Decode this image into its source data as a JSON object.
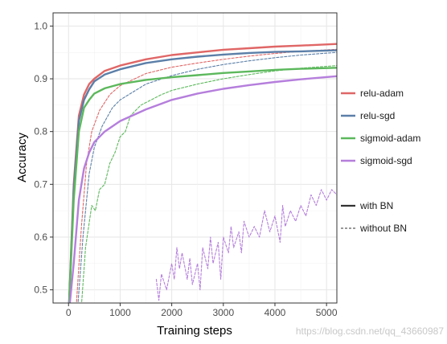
{
  "chart_data": {
    "type": "line",
    "title": "",
    "xlabel": "Training steps",
    "ylabel": "Accuracy",
    "xlim": [
      -300,
      5200
    ],
    "ylim": [
      0.475,
      1.025
    ],
    "x_ticks": [
      0,
      1000,
      2000,
      3000,
      4000,
      5000
    ],
    "y_ticks": [
      0.5,
      0.6,
      0.7,
      0.8,
      0.9,
      1.0
    ],
    "x_tick_labels": [
      "0",
      "1000",
      "2000",
      "3000",
      "4000",
      "5000"
    ],
    "y_tick_labels": [
      "0.5",
      "0.6",
      "0.7",
      "0.8",
      "0.9",
      "1.0"
    ],
    "grid": true,
    "legend_position": "right",
    "legend_colors": [
      {
        "label": "relu-adam",
        "color": "#e06666"
      },
      {
        "label": "relu-sgd",
        "color": "#5b7fa8"
      },
      {
        "label": "sigmoid-adam",
        "color": "#5cb85c"
      },
      {
        "label": "sigmoid-sgd",
        "color": "#b57edc"
      }
    ],
    "legend_styles": [
      {
        "label": "with BN",
        "dash": "solid"
      },
      {
        "label": "without BN",
        "dash": "dashed"
      }
    ],
    "series": [
      {
        "color": "#e06666",
        "style": "solid",
        "x": [
          0,
          100,
          200,
          300,
          400,
          500,
          700,
          1000,
          1500,
          2000,
          2500,
          3000,
          3500,
          4000,
          4500,
          5200
        ],
        "y": [
          0.45,
          0.7,
          0.83,
          0.87,
          0.89,
          0.9,
          0.915,
          0.925,
          0.937,
          0.945,
          0.95,
          0.955,
          0.958,
          0.961,
          0.963,
          0.966
        ]
      },
      {
        "color": "#5b7fa8",
        "style": "solid",
        "x": [
          0,
          100,
          200,
          300,
          400,
          500,
          700,
          1000,
          1500,
          2000,
          2500,
          3000,
          3500,
          4000,
          4500,
          5200
        ],
        "y": [
          0.45,
          0.69,
          0.82,
          0.86,
          0.88,
          0.895,
          0.908,
          0.918,
          0.93,
          0.937,
          0.942,
          0.946,
          0.949,
          0.951,
          0.952,
          0.954
        ]
      },
      {
        "color": "#5cb85c",
        "style": "solid",
        "x": [
          0,
          100,
          200,
          300,
          400,
          500,
          700,
          1000,
          1500,
          2000,
          2500,
          3000,
          3500,
          4000,
          4500,
          5200
        ],
        "y": [
          0.45,
          0.67,
          0.8,
          0.845,
          0.86,
          0.872,
          0.882,
          0.89,
          0.898,
          0.903,
          0.907,
          0.911,
          0.914,
          0.917,
          0.919,
          0.921
        ]
      },
      {
        "color": "#b57edc",
        "style": "solid",
        "x": [
          0,
          100,
          200,
          300,
          400,
          500,
          700,
          1000,
          1500,
          2000,
          2500,
          3000,
          3500,
          4000,
          4500,
          5200
        ],
        "y": [
          0.45,
          0.55,
          0.67,
          0.73,
          0.76,
          0.78,
          0.8,
          0.82,
          0.842,
          0.86,
          0.872,
          0.881,
          0.888,
          0.894,
          0.899,
          0.905
        ]
      },
      {
        "color": "#e06666",
        "style": "dashed",
        "x": [
          150,
          250,
          350,
          450,
          600,
          800,
          1000,
          1500,
          2000,
          2500,
          3000,
          3500,
          4000,
          4500,
          5200
        ],
        "y": [
          0.47,
          0.62,
          0.74,
          0.8,
          0.84,
          0.87,
          0.887,
          0.91,
          0.922,
          0.93,
          0.937,
          0.943,
          0.948,
          0.952,
          0.956
        ]
      },
      {
        "color": "#5b7fa8",
        "style": "dashed",
        "x": [
          180,
          280,
          400,
          500,
          650,
          850,
          1000,
          1500,
          2000,
          2500,
          3000,
          3500,
          4000,
          4500,
          5200
        ],
        "y": [
          0.47,
          0.6,
          0.72,
          0.77,
          0.81,
          0.845,
          0.86,
          0.89,
          0.906,
          0.918,
          0.927,
          0.934,
          0.94,
          0.945,
          0.95
        ]
      },
      {
        "color": "#5cb85c",
        "style": "dashed",
        "x": [
          250,
          330,
          450,
          520,
          600,
          700,
          800,
          900,
          1000,
          1100,
          1200,
          1400,
          1600,
          1800,
          2000,
          2500,
          3000,
          3500,
          4000,
          4500,
          5200
        ],
        "y": [
          0.47,
          0.58,
          0.66,
          0.65,
          0.69,
          0.7,
          0.74,
          0.76,
          0.79,
          0.8,
          0.83,
          0.85,
          0.86,
          0.87,
          0.878,
          0.89,
          0.9,
          0.908,
          0.915,
          0.92,
          0.925
        ]
      },
      {
        "color": "#b57edc",
        "style": "dashed",
        "x": [
          1700,
          1750,
          1800,
          1900,
          2000,
          2050,
          2100,
          2150,
          2200,
          2300,
          2350,
          2400,
          2500,
          2550,
          2600,
          2700,
          2750,
          2800,
          2900,
          2950,
          3000,
          3100,
          3150,
          3200,
          3300,
          3350,
          3400,
          3500,
          3600,
          3700,
          3800,
          3900,
          4000,
          4100,
          4150,
          4200,
          4300,
          4400,
          4500,
          4600,
          4700,
          4800,
          4900,
          5000,
          5100,
          5200
        ],
        "y": [
          0.52,
          0.48,
          0.53,
          0.5,
          0.55,
          0.52,
          0.58,
          0.54,
          0.57,
          0.52,
          0.56,
          0.51,
          0.55,
          0.5,
          0.58,
          0.54,
          0.6,
          0.55,
          0.59,
          0.52,
          0.6,
          0.57,
          0.62,
          0.58,
          0.61,
          0.57,
          0.63,
          0.6,
          0.62,
          0.6,
          0.65,
          0.61,
          0.64,
          0.59,
          0.66,
          0.62,
          0.65,
          0.63,
          0.66,
          0.64,
          0.68,
          0.66,
          0.69,
          0.67,
          0.69,
          0.68
        ]
      }
    ]
  },
  "watermark": "https://blog.csdn.net/qq_43660987"
}
